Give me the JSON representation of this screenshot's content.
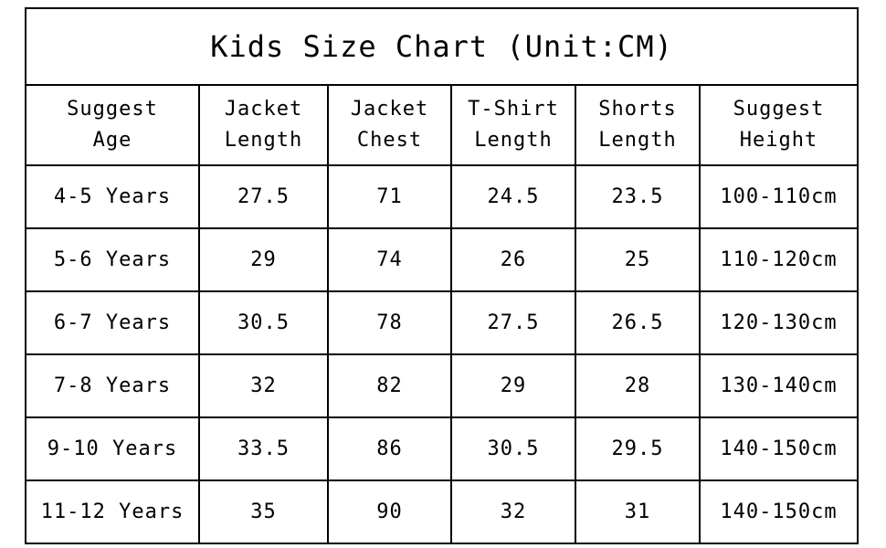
{
  "title": "Kids Size Chart (Unit:CM)",
  "headers": [
    {
      "line1": "Suggest",
      "line2": "Age"
    },
    {
      "line1": "Jacket",
      "line2": "Length"
    },
    {
      "line1": "Jacket",
      "line2": "Chest"
    },
    {
      "line1": "T-Shirt",
      "line2": "Length"
    },
    {
      "line1": "Shorts",
      "line2": "Length"
    },
    {
      "line1": "Suggest",
      "line2": "Height"
    }
  ],
  "rows": [
    [
      "4-5 Years",
      "27.5",
      "71",
      "24.5",
      "23.5",
      "100-110cm"
    ],
    [
      "5-6 Years",
      "29",
      "74",
      "26",
      "25",
      "110-120cm"
    ],
    [
      "6-7 Years",
      "30.5",
      "78",
      "27.5",
      "26.5",
      "120-130cm"
    ],
    [
      "7-8 Years",
      "32",
      "82",
      "29",
      "28",
      "130-140cm"
    ],
    [
      "9-10 Years",
      "33.5",
      "86",
      "30.5",
      "29.5",
      "140-150cm"
    ],
    [
      "11-12 Years",
      "35",
      "90",
      "32",
      "31",
      "140-150cm"
    ]
  ]
}
